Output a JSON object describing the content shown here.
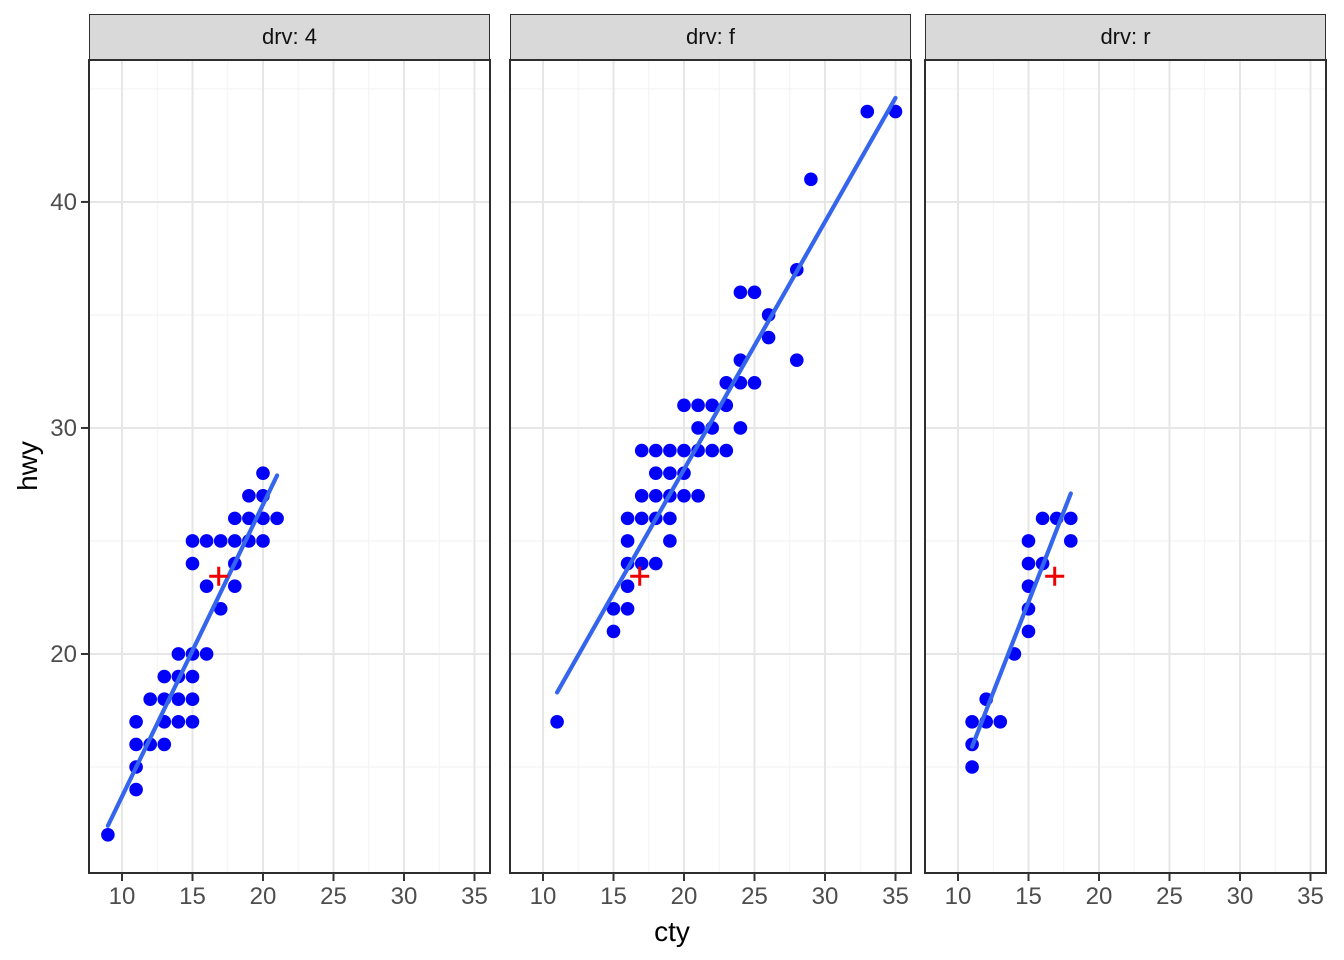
{
  "figure": {
    "kind": "faceted scatter plot with linear trend and mean marker",
    "facet_variable": "drv"
  },
  "chart_data": {
    "type": "scatter",
    "title": "",
    "xlabel": "cty",
    "ylabel": "hwy",
    "x_ticks": [
      10,
      15,
      20,
      25,
      30,
      35
    ],
    "x_minor": [
      12.5,
      17.5,
      22.5,
      27.5,
      32.5
    ],
    "y_ticks": [
      20,
      30,
      40
    ],
    "y_minor": [
      15,
      25,
      35,
      45
    ],
    "xlim": [
      7.66,
      36.1
    ],
    "ylim": [
      10.31,
      46.28
    ],
    "grid": true,
    "legend": "none",
    "point_color": "#0202F8",
    "smooth_color": "#3465EC",
    "mean_marker_color": "#EE0000",
    "strip_bg": "#D9D9D9",
    "mean_point": {
      "cty": 16.86,
      "hwy": 23.44
    },
    "facets": [
      {
        "label": "drv: 4",
        "points": [
          [
            9,
            12
          ],
          [
            11,
            14
          ],
          [
            11,
            15
          ],
          [
            11,
            16
          ],
          [
            12,
            16
          ],
          [
            13,
            16
          ],
          [
            11,
            17
          ],
          [
            13,
            17
          ],
          [
            14,
            17
          ],
          [
            15,
            17
          ],
          [
            12,
            18
          ],
          [
            13,
            18
          ],
          [
            14,
            18
          ],
          [
            15,
            18
          ],
          [
            13,
            19
          ],
          [
            14,
            19
          ],
          [
            15,
            19
          ],
          [
            14,
            20
          ],
          [
            15,
            20
          ],
          [
            16,
            20
          ],
          [
            17,
            22
          ],
          [
            16,
            23
          ],
          [
            18,
            23
          ],
          [
            15,
            24
          ],
          [
            18,
            24
          ],
          [
            15,
            25
          ],
          [
            16,
            25
          ],
          [
            17,
            25
          ],
          [
            18,
            25
          ],
          [
            19,
            25
          ],
          [
            20,
            25
          ],
          [
            18,
            26
          ],
          [
            19,
            26
          ],
          [
            20,
            26
          ],
          [
            21,
            26
          ],
          [
            19,
            27
          ],
          [
            20,
            27
          ],
          [
            20,
            28
          ]
        ],
        "trend": [
          [
            9,
            12.4
          ],
          [
            21,
            27.9
          ]
        ]
      },
      {
        "label": "drv: f",
        "points": [
          [
            11,
            17
          ],
          [
            15,
            21
          ],
          [
            15,
            22
          ],
          [
            16,
            22
          ],
          [
            16,
            23
          ],
          [
            16,
            24
          ],
          [
            17,
            24
          ],
          [
            18,
            24
          ],
          [
            16,
            25
          ],
          [
            19,
            25
          ],
          [
            16,
            26
          ],
          [
            17,
            26
          ],
          [
            18,
            26
          ],
          [
            19,
            26
          ],
          [
            17,
            27
          ],
          [
            18,
            27
          ],
          [
            19,
            27
          ],
          [
            20,
            27
          ],
          [
            21,
            27
          ],
          [
            18,
            28
          ],
          [
            19,
            28
          ],
          [
            20,
            28
          ],
          [
            17,
            29
          ],
          [
            18,
            29
          ],
          [
            19,
            29
          ],
          [
            20,
            29
          ],
          [
            21,
            29
          ],
          [
            22,
            29
          ],
          [
            23,
            29
          ],
          [
            21,
            30
          ],
          [
            22,
            30
          ],
          [
            24,
            30
          ],
          [
            20,
            31
          ],
          [
            21,
            31
          ],
          [
            22,
            31
          ],
          [
            23,
            31
          ],
          [
            23,
            32
          ],
          [
            24,
            32
          ],
          [
            25,
            32
          ],
          [
            24,
            33
          ],
          [
            28,
            33
          ],
          [
            26,
            34
          ],
          [
            26,
            35
          ],
          [
            24,
            36
          ],
          [
            25,
            36
          ],
          [
            28,
            37
          ],
          [
            29,
            41
          ],
          [
            33,
            44
          ],
          [
            35,
            44
          ]
        ],
        "trend": [
          [
            11,
            18.3
          ],
          [
            35,
            44.6
          ]
        ]
      },
      {
        "label": "drv: r",
        "points": [
          [
            11,
            15
          ],
          [
            11,
            16
          ],
          [
            11,
            17
          ],
          [
            12,
            17
          ],
          [
            13,
            17
          ],
          [
            12,
            18
          ],
          [
            14,
            20
          ],
          [
            15,
            21
          ],
          [
            15,
            22
          ],
          [
            15,
            23
          ],
          [
            15,
            24
          ],
          [
            16,
            24
          ],
          [
            15,
            25
          ],
          [
            18,
            25
          ],
          [
            16,
            26
          ],
          [
            17,
            26
          ],
          [
            18,
            26
          ]
        ],
        "trend": [
          [
            11,
            15.9
          ],
          [
            18,
            27.1
          ]
        ]
      }
    ]
  }
}
